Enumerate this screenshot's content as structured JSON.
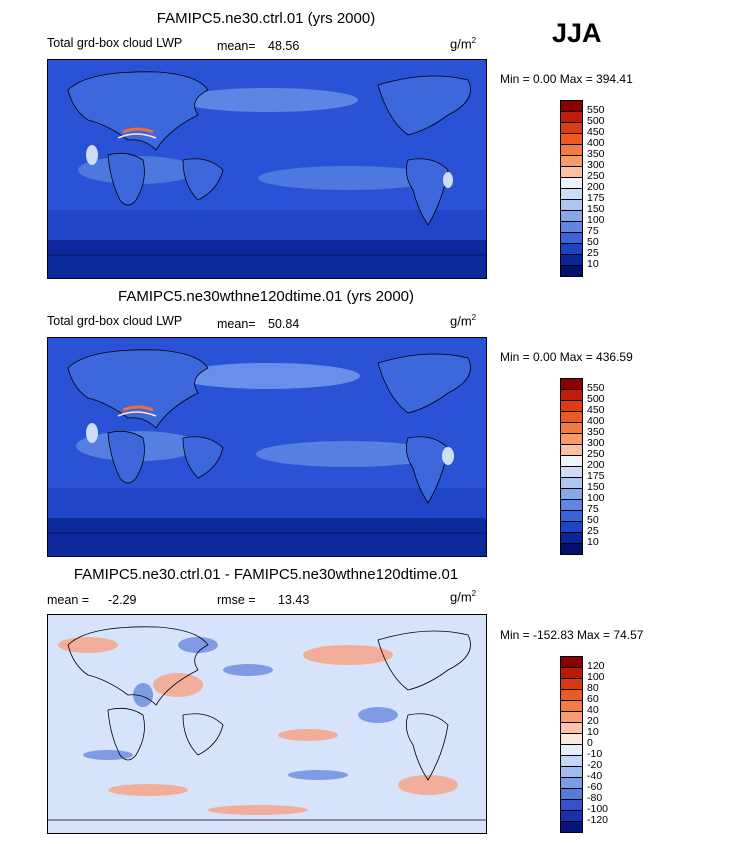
{
  "season": "JJA",
  "panels": [
    {
      "title": "FAMIPC5.ne30.ctrl.01 (yrs 2000)",
      "variable": "Total grd-box cloud LWP",
      "mean_label": "mean=",
      "mean_value": "48.56",
      "units": "g/m",
      "units_exp": "2",
      "minmax": "Min =    0.00 Max = 394.41",
      "colorbar_labels": [
        "550",
        "500",
        "450",
        "400",
        "350",
        "300",
        "250",
        "200",
        "175",
        "150",
        "100",
        "75",
        "50",
        "25",
        "10"
      ],
      "colorbar_colors": [
        "#8b0000",
        "#c01d08",
        "#dc3c12",
        "#ec5a24",
        "#f47a44",
        "#f89a6a",
        "#fbc0a0",
        "#eef2fa",
        "#cfdcf5",
        "#aec5f0",
        "#86a7ea",
        "#5f86e2",
        "#3a64d8",
        "#1e44c4",
        "#0c249a",
        "#04106e"
      ]
    },
    {
      "title": "FAMIPC5.ne30wthne120dtime.01 (yrs 2000)",
      "variable": "Total grd-box cloud LWP",
      "mean_label": "mean=",
      "mean_value": "50.84",
      "units": "g/m",
      "units_exp": "2",
      "minmax": "Min =    0.00 Max = 436.59",
      "colorbar_labels": [
        "550",
        "500",
        "450",
        "400",
        "350",
        "300",
        "250",
        "200",
        "175",
        "150",
        "100",
        "75",
        "50",
        "25",
        "10"
      ],
      "colorbar_colors": [
        "#8b0000",
        "#c01d08",
        "#dc3c12",
        "#ec5a24",
        "#f47a44",
        "#f89a6a",
        "#fbc0a0",
        "#eef2fa",
        "#cfdcf5",
        "#aec5f0",
        "#86a7ea",
        "#5f86e2",
        "#3a64d8",
        "#1e44c4",
        "#0c249a",
        "#04106e"
      ]
    },
    {
      "title": "FAMIPC5.ne30.ctrl.01 - FAMIPC5.ne30wthne120dtime.01",
      "mean_label": "mean =",
      "mean_value": "-2.29",
      "rmse_label": "rmse =",
      "rmse_value": "13.43",
      "units": "g/m",
      "units_exp": "2",
      "minmax": "Min = -152.83 Max =  74.57",
      "colorbar_labels": [
        "120",
        "100",
        "80",
        "60",
        "40",
        "20",
        "10",
        "0",
        "-10",
        "-20",
        "-40",
        "-60",
        "-80",
        "-100",
        "-120"
      ],
      "colorbar_colors": [
        "#8b0000",
        "#b81a08",
        "#d83a10",
        "#ec5a24",
        "#f47a48",
        "#f89c74",
        "#fbc3a8",
        "#fde6da",
        "#e4eefb",
        "#c4d6f5",
        "#a2bcef",
        "#7c9de6",
        "#587adb",
        "#3552cc",
        "#1a30b0",
        "#0a1478"
      ]
    }
  ],
  "colors": {
    "lwp_ocean": "#2a52d6",
    "lwp_dark": "#0c2a9c",
    "lwp_land": "#3d68dc",
    "lwp_high": "#cfdcf5",
    "lwp_peak": "#f06a3a",
    "diff_bg": "#d6e3fa",
    "diff_pos": "#f6a488",
    "diff_neg": "#6f8fe0"
  }
}
